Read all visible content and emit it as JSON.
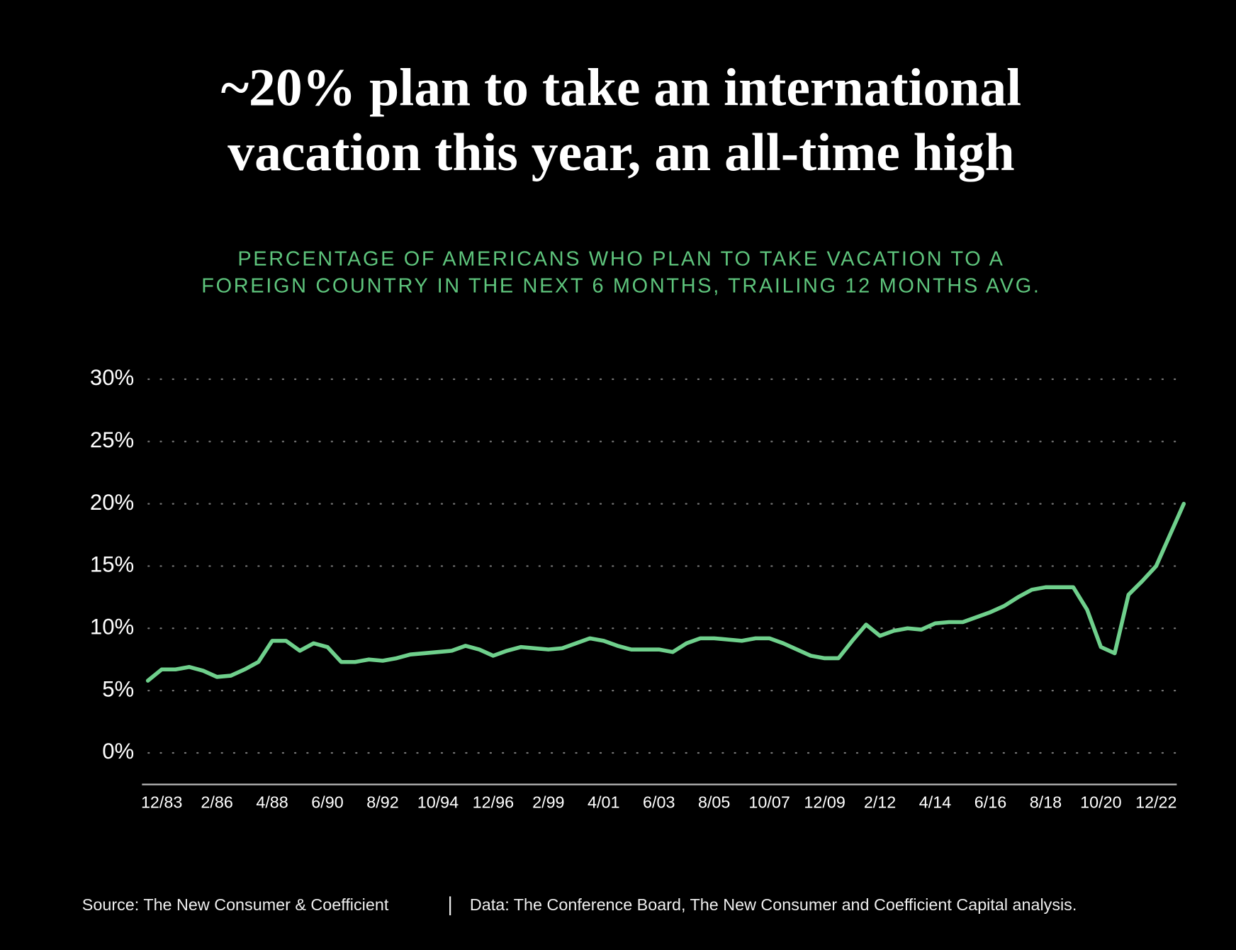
{
  "chart_data": {
    "type": "line",
    "title": [
      "~20% plan to take an international",
      "vacation this year, an all-time high"
    ],
    "subtitle": [
      "PERCENTAGE OF AMERICANS WHO PLAN TO TAKE VACATION TO A",
      "FOREIGN COUNTRY IN THE NEXT 6 MONTHS, TRAILING 12 MONTHS AVG."
    ],
    "source": "Source: The New Consumer & Coefficient",
    "note": "Data: The Conference Board, The New Consumer and Coefficient Capital analysis.",
    "categories": [
      null,
      "12/83",
      null,
      null,
      null,
      "2/86",
      null,
      null,
      null,
      "4/88",
      null,
      null,
      null,
      "6/90",
      null,
      null,
      null,
      "8/92",
      null,
      null,
      null,
      "10/94",
      null,
      null,
      null,
      "12/96",
      null,
      null,
      null,
      "2/99",
      null,
      null,
      null,
      "4/01",
      null,
      null,
      null,
      "6/03",
      null,
      null,
      null,
      "8/05",
      null,
      null,
      null,
      "10/07",
      null,
      null,
      null,
      "12/09",
      null,
      null,
      null,
      "2/12",
      null,
      null,
      null,
      "4/14",
      null,
      null,
      null,
      "6/16",
      null,
      null,
      null,
      "8/18",
      null,
      null,
      null,
      "10/20",
      null,
      null,
      null,
      "12/22",
      null,
      null
    ],
    "series": [
      {
        "color": "#6fd08c",
        "values": [
          5.8,
          6.7,
          6.7,
          6.9,
          6.6,
          6.1,
          6.2,
          6.7,
          7.3,
          9.0,
          9.0,
          8.2,
          8.8,
          8.5,
          7.3,
          7.3,
          7.5,
          7.4,
          7.6,
          7.9,
          8.0,
          8.1,
          8.2,
          8.6,
          8.3,
          7.8,
          8.2,
          8.5,
          8.4,
          8.3,
          8.4,
          8.8,
          9.2,
          9.0,
          8.6,
          8.3,
          8.3,
          8.3,
          8.1,
          8.8,
          9.2,
          9.2,
          9.1,
          9.0,
          9.2,
          9.2,
          8.8,
          8.3,
          7.8,
          7.6,
          7.6,
          9.0,
          10.3,
          9.4,
          9.8,
          10.0,
          9.9,
          10.4,
          10.5,
          10.5,
          10.9,
          11.3,
          11.8,
          12.5,
          13.1,
          13.3,
          13.3,
          13.3,
          11.5,
          8.5,
          8.0,
          12.7,
          13.8,
          15.0,
          17.5,
          20.0
        ]
      }
    ],
    "ylim": [
      0,
      30
    ],
    "yticks": [
      {
        "value": 0,
        "label": "0%"
      },
      {
        "value": 5,
        "label": "5%"
      },
      {
        "value": 10,
        "label": "10%"
      },
      {
        "value": 15,
        "label": "15%"
      },
      {
        "value": 20,
        "label": "20%"
      },
      {
        "value": 25,
        "label": "25%"
      },
      {
        "value": 30,
        "label": "30%"
      }
    ],
    "grid": true
  }
}
